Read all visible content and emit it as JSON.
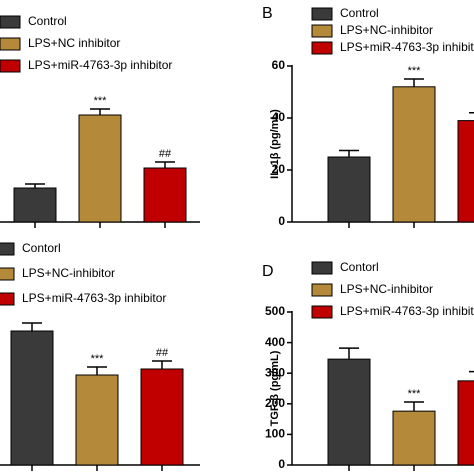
{
  "chart_data": [
    {
      "type": "bar",
      "categories": [
        "Control",
        "LPS+NC inhibitor",
        "LPS+miR-4763-3p inhibitor"
      ],
      "colors": [
        "#3a3a3a",
        "#b5893a",
        "#c00000"
      ],
      "values": [
        34,
        107,
        54
      ],
      "errors": [
        4,
        6,
        6
      ],
      "annotations": [
        null,
        "***",
        "##"
      ],
      "ylim": [
        0,
        130
      ]
    },
    {
      "type": "bar",
      "panel_label": "B",
      "y_label": "IL-1β (pg/mL)",
      "categories": [
        "Control",
        "LPS+NC-inhibitor",
        "LPS+miR-4763-3p inhibitor"
      ],
      "colors": [
        "#3a3a3a",
        "#b5893a",
        "#c00000"
      ],
      "values": [
        25,
        52,
        39
      ],
      "errors": [
        2.5,
        3,
        3
      ],
      "annotations": [
        null,
        "***",
        null
      ],
      "ylim": [
        0,
        60
      ],
      "yticks": [
        0,
        20,
        40,
        60
      ]
    },
    {
      "type": "bar",
      "categories": [
        "Contorl",
        "LPS+NC-inhibitor",
        "LPS+miR-4763-3p inhibitor"
      ],
      "colors": [
        "#3a3a3a",
        "#b5893a",
        "#c00000"
      ],
      "values": [
        134,
        90,
        96
      ],
      "errors": [
        8,
        8,
        8
      ],
      "annotations": [
        null,
        "***",
        "##"
      ],
      "ylim": [
        0,
        150
      ]
    },
    {
      "type": "bar",
      "panel_label": "D",
      "y_label": "TGF-β (pg/mL)",
      "categories": [
        "Contorl",
        "LPS+NC-inhibitor",
        "LPS+miR-4763-3p inhibitor"
      ],
      "colors": [
        "#3a3a3a",
        "#b5893a",
        "#c00000"
      ],
      "values": [
        346,
        176,
        275
      ],
      "errors": [
        36,
        30,
        30
      ],
      "annotations": [
        null,
        "***",
        null
      ],
      "ylim": [
        0,
        500
      ],
      "yticks": [
        0,
        100,
        200,
        300,
        400,
        500
      ]
    }
  ]
}
